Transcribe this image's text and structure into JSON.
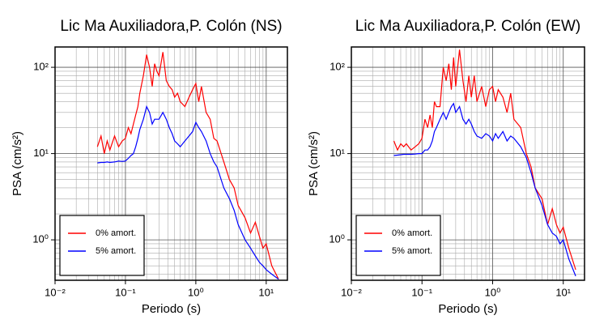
{
  "chart_data": [
    {
      "type": "line",
      "title": "Lic Ma Auxiliadora,P. Colón (NS)",
      "xlabel": "Periodo (s)",
      "ylabel": "PSA (cm/s²)",
      "xscale": "log",
      "yscale": "log",
      "grid": true,
      "legend": "lower left",
      "xlim": [
        0.01,
        20
      ],
      "ylim": [
        0.34,
        172
      ],
      "xticks": [
        {
          "value": 0.01,
          "label": "10⁻²"
        },
        {
          "value": 0.1,
          "label": "10⁻¹"
        },
        {
          "value": 1,
          "label": "10⁰"
        },
        {
          "value": 10,
          "label": "10¹"
        }
      ],
      "yticks": [
        {
          "value": 1,
          "label": "10⁰"
        },
        {
          "value": 10,
          "label": "10¹"
        },
        {
          "value": 100,
          "label": "10²"
        }
      ],
      "x": [
        0.04,
        0.045,
        0.05,
        0.055,
        0.06,
        0.07,
        0.08,
        0.09,
        0.1,
        0.11,
        0.12,
        0.13,
        0.14,
        0.15,
        0.16,
        0.18,
        0.2,
        0.22,
        0.24,
        0.26,
        0.28,
        0.3,
        0.34,
        0.38,
        0.42,
        0.46,
        0.5,
        0.55,
        0.6,
        0.7,
        0.8,
        0.9,
        1.0,
        1.1,
        1.2,
        1.4,
        1.6,
        1.8,
        2.0,
        2.5,
        3.0,
        3.5,
        4.0,
        5,
        6,
        7,
        8,
        9,
        10,
        12,
        15
      ],
      "series": [
        {
          "name": "0% amort.",
          "color": "#ff0000",
          "values": [
            12,
            16,
            10,
            14,
            11,
            16,
            12,
            14,
            15,
            20,
            17,
            22,
            28,
            35,
            50,
            80,
            140,
            100,
            60,
            110,
            90,
            80,
            150,
            70,
            60,
            55,
            45,
            50,
            40,
            35,
            45,
            55,
            65,
            40,
            60,
            30,
            25,
            15,
            14,
            8,
            5,
            4,
            2.5,
            1.8,
            1.2,
            1.6,
            1.1,
            0.8,
            0.9,
            0.5,
            0.35
          ]
        },
        {
          "name": "5% amort.",
          "color": "#0000ff",
          "values": [
            7.8,
            7.9,
            7.9,
            8,
            7.9,
            8,
            8.2,
            8.1,
            8.2,
            8.8,
            9.5,
            10,
            12,
            15,
            19,
            25,
            35,
            30,
            22,
            25,
            25,
            25,
            30,
            25,
            20,
            17,
            14,
            13,
            12,
            14,
            16,
            18,
            23,
            20,
            18,
            14,
            10,
            8,
            7,
            4,
            3,
            2.2,
            1.5,
            1.0,
            0.8,
            0.65,
            0.55,
            0.5,
            0.45,
            0.4,
            0.35
          ]
        }
      ]
    },
    {
      "type": "line",
      "title": "Lic Ma Auxiliadora,P. Colón (EW)",
      "xlabel": "Periodo (s)",
      "ylabel": "PSA (cm/s²)",
      "xscale": "log",
      "yscale": "log",
      "grid": true,
      "legend": "lower left",
      "xlim": [
        0.01,
        20
      ],
      "ylim": [
        0.34,
        172
      ],
      "xticks": [
        {
          "value": 0.01,
          "label": "10⁻²"
        },
        {
          "value": 0.1,
          "label": "10⁻¹"
        },
        {
          "value": 1,
          "label": "10⁰"
        },
        {
          "value": 10,
          "label": "10¹"
        }
      ],
      "yticks": [
        {
          "value": 1,
          "label": "10⁰"
        },
        {
          "value": 10,
          "label": "10¹"
        },
        {
          "value": 100,
          "label": "10²"
        }
      ],
      "x": [
        0.04,
        0.045,
        0.05,
        0.055,
        0.06,
        0.07,
        0.08,
        0.09,
        0.1,
        0.11,
        0.12,
        0.13,
        0.14,
        0.15,
        0.16,
        0.18,
        0.2,
        0.22,
        0.24,
        0.26,
        0.28,
        0.3,
        0.34,
        0.38,
        0.42,
        0.46,
        0.5,
        0.55,
        0.6,
        0.7,
        0.8,
        0.9,
        1.0,
        1.1,
        1.2,
        1.4,
        1.6,
        1.8,
        2.0,
        2.5,
        3.0,
        3.5,
        4.0,
        5,
        6,
        7,
        8,
        9,
        10,
        12,
        15
      ],
      "series": [
        {
          "name": "0% amort.",
          "color": "#ff0000",
          "values": [
            14,
            11,
            13,
            12,
            13,
            11,
            12,
            13,
            15,
            25,
            20,
            28,
            20,
            40,
            35,
            35,
            100,
            70,
            110,
            55,
            130,
            60,
            160,
            70,
            40,
            80,
            45,
            80,
            40,
            60,
            35,
            55,
            60,
            40,
            55,
            45,
            30,
            50,
            25,
            20,
            10,
            7,
            4,
            3,
            1.5,
            2.3,
            1.5,
            1.2,
            1.4,
            0.8,
            0.45
          ]
        },
        {
          "name": "5% amort.",
          "color": "#0000ff",
          "values": [
            9.5,
            9.6,
            9.7,
            9.8,
            9.8,
            9.8,
            9.9,
            10,
            10,
            11,
            11,
            12,
            14,
            18,
            20,
            25,
            30,
            25,
            30,
            35,
            38,
            30,
            35,
            25,
            22,
            25,
            22,
            18,
            16,
            15,
            17,
            16,
            14,
            17,
            15,
            18,
            14,
            16,
            15,
            12,
            9,
            6,
            4,
            2.5,
            1.5,
            1.2,
            1.1,
            0.9,
            1.0,
            0.6,
            0.38
          ]
        }
      ]
    }
  ]
}
